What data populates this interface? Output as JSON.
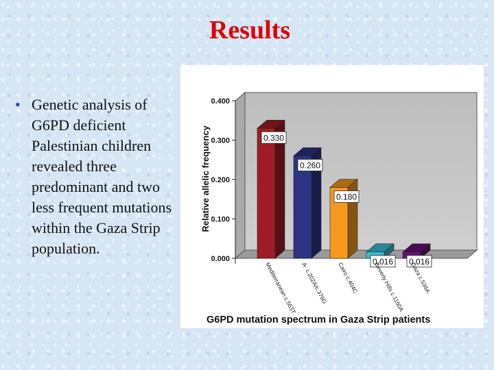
{
  "slide": {
    "title": "Results",
    "bullet": "Genetic analysis of G6PD deficient Palestinian children revealed three predominant and two less frequent mutations within the Gaza Strip population."
  },
  "chart_data": {
    "type": "bar",
    "title": "G6PD mutation spectrum in Gaza Strip patients",
    "ylabel": "Relative allelic frequency",
    "xlabel": "",
    "ylim": [
      0,
      0.4
    ],
    "yticks": [
      "0.000",
      "0.100",
      "0.200",
      "0.300",
      "0.400"
    ],
    "categories": [
      "Mediterranean c.563T",
      "A- c.202A/c.376G",
      "Cairo c.404C",
      "Beverly Hills c.1160A",
      "Gaza c.536A"
    ],
    "values": [
      0.33,
      0.26,
      0.18,
      0.016,
      0.016
    ],
    "data_labels": [
      "0.330",
      "0.260",
      "0.180",
      "0.016",
      "0.016"
    ],
    "colors": [
      "#a01c24",
      "#2a3482",
      "#f59a1c",
      "#38c0d8",
      "#6a1078"
    ],
    "grid": false,
    "three_d": true,
    "background": "#cccccc"
  }
}
